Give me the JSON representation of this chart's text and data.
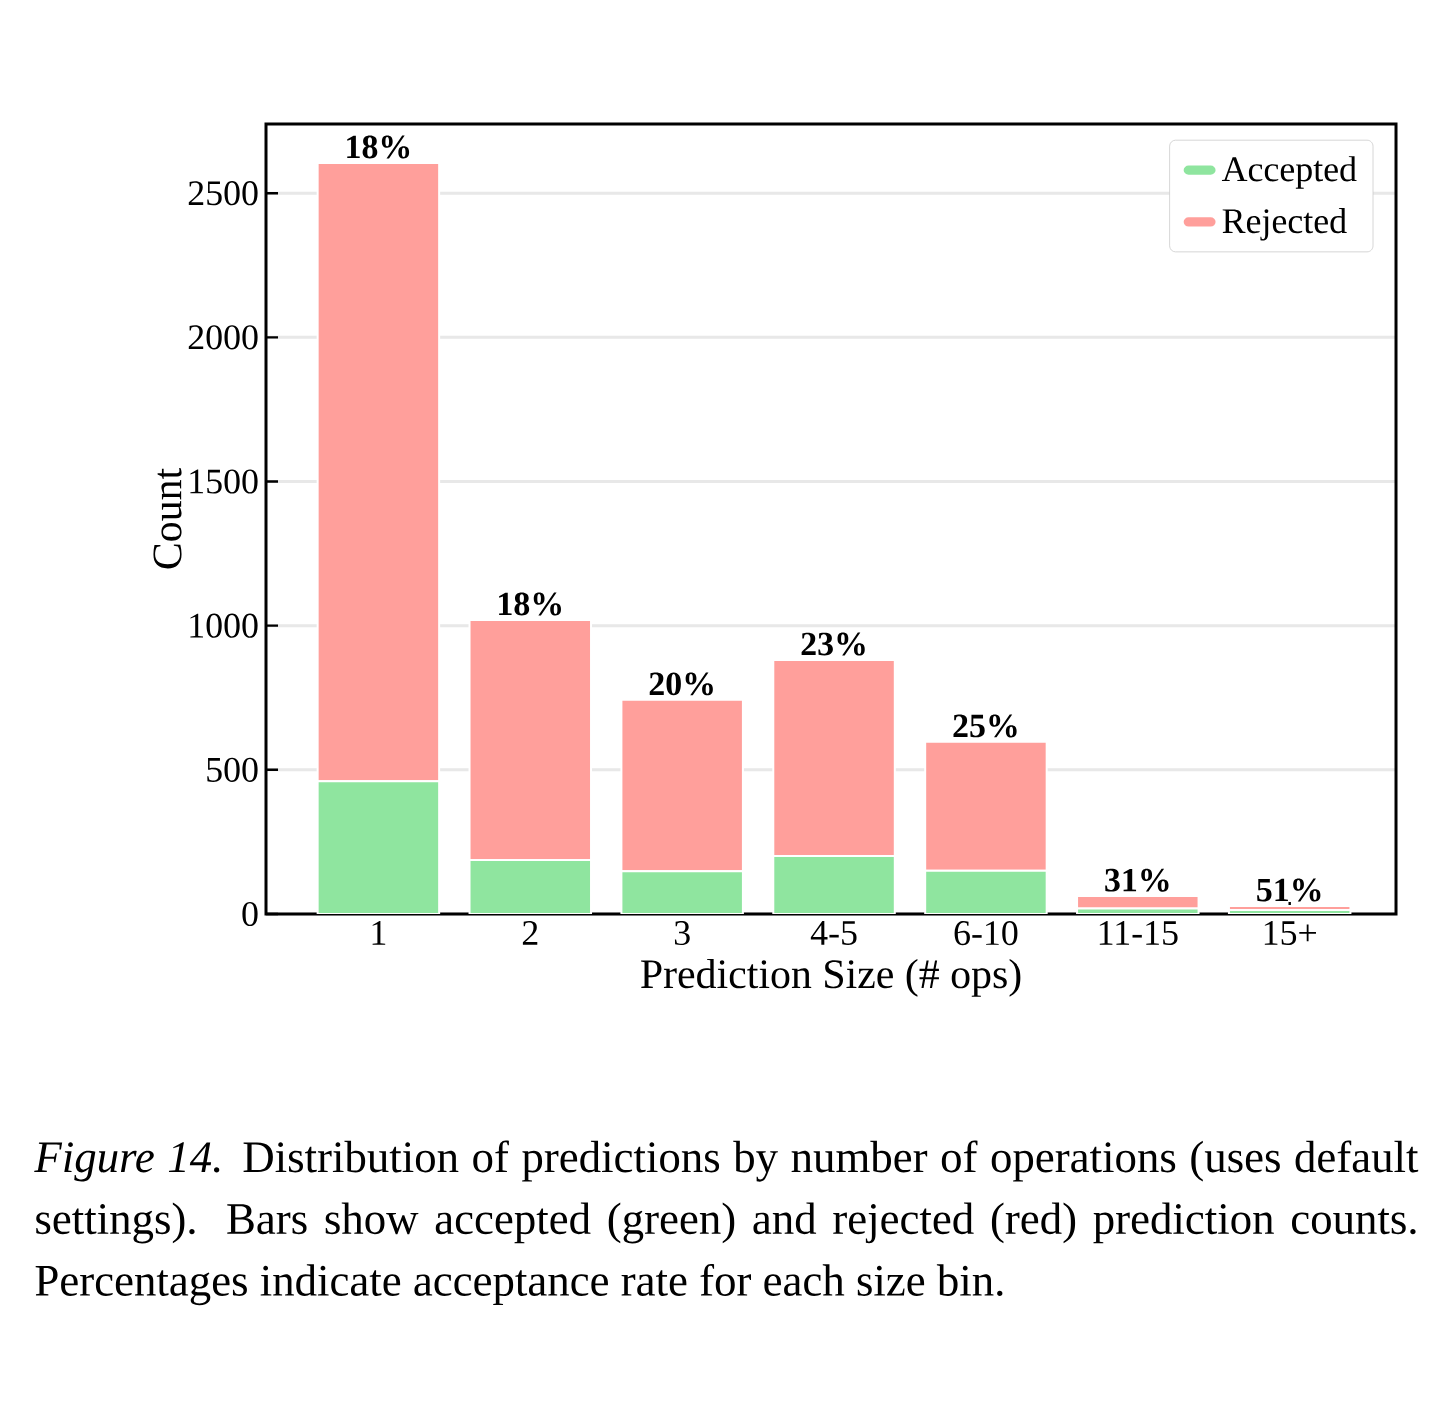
{
  "chart_data": {
    "type": "bar",
    "stacked": true,
    "xlabel": "Prediction Size (# ops)",
    "ylabel": "Count",
    "categories": [
      "1",
      "2",
      "3",
      "4-5",
      "6-10",
      "11-15",
      "15+"
    ],
    "series": [
      {
        "name": "Accepted",
        "color": "#8fe59f",
        "values": [
          460,
          187,
          148,
          201,
          150,
          19,
          14
        ]
      },
      {
        "name": "Rejected",
        "color": "#ff9f9b",
        "values": [
          2145,
          833,
          595,
          680,
          447,
          43,
          14
        ]
      }
    ],
    "ylim": [
      0,
      2740
    ],
    "yticks": [
      0,
      500,
      1000,
      1500,
      2000,
      2500
    ],
    "grid": "y",
    "legend": "top right",
    "annotations": [
      {
        "text": "18%",
        "x": "1",
        "y": 2605
      },
      {
        "text": "18%",
        "x": "2",
        "y": 1020
      },
      {
        "text": "20%",
        "x": "3",
        "y": 743
      },
      {
        "text": "23%",
        "x": "4-5",
        "y": 881
      },
      {
        "text": "25%",
        "x": "6-10",
        "y": 597
      },
      {
        "text": "31%",
        "x": "11-15",
        "y": 62
      },
      {
        "text": "51%",
        "x": "15+",
        "y": 28
      },
      "*Figure 14.* Distribution of predictions by number of operations (uses default settings). Bars show accepted (green) and rejected (red) prediction counts. Percentages indicate acceptance rate for each size bin."
    ]
  }
}
